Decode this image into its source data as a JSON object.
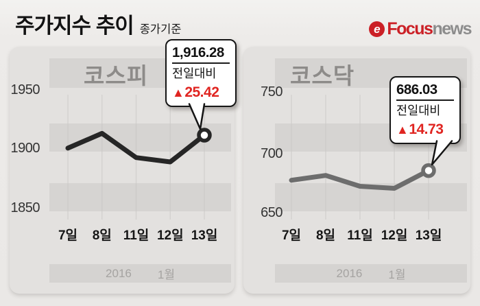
{
  "header": {
    "title": "주가지수 추이",
    "subtitle": "종가기준",
    "logo": {
      "icon_letter": "e",
      "brand": "Focus",
      "suffix": "news",
      "brand_color": "#cb2026",
      "suffix_color": "#8c8c8c"
    }
  },
  "colors": {
    "change_up_red": "#e02521",
    "kospi_line": "#262626",
    "kosdaq_line": "#6d6d6d",
    "panel_bg": "#e3e1df",
    "stripe": "#d6d4d2"
  },
  "chart_data": [
    {
      "type": "line",
      "title": "코스피",
      "categories": [
        "7일",
        "8일",
        "11일",
        "12일",
        "13일"
      ],
      "values": [
        1904,
        1918,
        1895,
        1890.86,
        1916.28
      ],
      "y_ticks": [
        1950,
        1900,
        1850
      ],
      "ylim": [
        1840,
        1960
      ],
      "line_color": "#262626",
      "grid": "horizontal-bands",
      "legend": "none",
      "footer": {
        "year": "2016",
        "month": "1월"
      },
      "annotation": {
        "value": "1,916.28",
        "label": "전일대비",
        "arrow": "▲",
        "change": "25.42"
      }
    },
    {
      "type": "line",
      "title": "코스닥",
      "categories": [
        "7일",
        "8일",
        "11일",
        "12일",
        "13일"
      ],
      "values": [
        678,
        682,
        673,
        671.3,
        686.03
      ],
      "y_ticks": [
        750,
        700,
        650
      ],
      "ylim": [
        640,
        760
      ],
      "line_color": "#6d6d6d",
      "grid": "horizontal-bands",
      "legend": "none",
      "footer": {
        "year": "2016",
        "month": "1월"
      },
      "annotation": {
        "value": "686.03",
        "label": "전일대비",
        "arrow": "▲",
        "change": "14.73"
      }
    }
  ]
}
